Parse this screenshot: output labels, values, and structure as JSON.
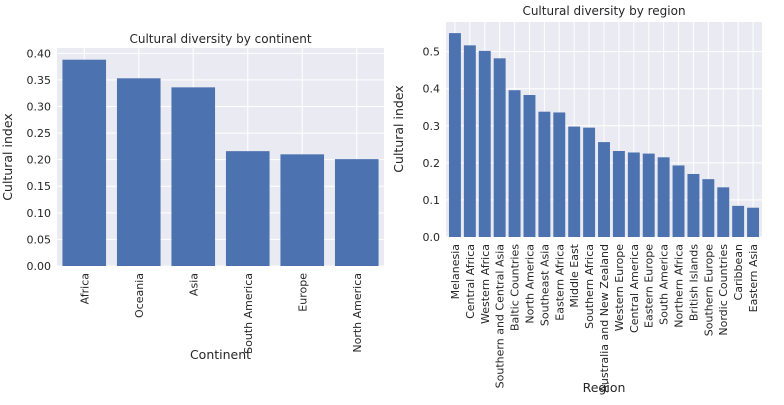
{
  "chart_data": [
    {
      "type": "bar",
      "title": "Cultural diversity by continent",
      "xlabel": "Continent",
      "ylabel": "Cultural index",
      "ylim": [
        0,
        0.41
      ],
      "yticks": [
        "0.00",
        "0.05",
        "0.10",
        "0.15",
        "0.20",
        "0.25",
        "0.30",
        "0.35",
        "0.40"
      ],
      "categories": [
        "Africa",
        "Oceania",
        "Asia",
        "South America",
        "Europe",
        "North America"
      ],
      "values": [
        0.388,
        0.353,
        0.336,
        0.216,
        0.21,
        0.201
      ],
      "grid": true,
      "bar_color": "#4c72b0",
      "plot_bg": "#eaeaf2"
    },
    {
      "type": "bar",
      "title": "Cultural diversity by region",
      "xlabel": "Region",
      "ylabel": "Cultural index",
      "ylim": [
        0,
        0.58
      ],
      "yticks": [
        "0.0",
        "0.1",
        "0.2",
        "0.3",
        "0.4",
        "0.5"
      ],
      "categories": [
        "Melanesia",
        "Central Africa",
        "Western Africa",
        "Southern and Central Asia",
        "Baltic Countries",
        "North America",
        "Southeast Asia",
        "Eastern Africa",
        "Middle East",
        "Southern Africa",
        "Australia and New Zealand",
        "Western Europe",
        "Central America",
        "Eastern Europe",
        "South America",
        "Northern Africa",
        "British Islands",
        "Southern Europe",
        "Nordic Countries",
        "Caribbean",
        "Eastern Asia"
      ],
      "values": [
        0.55,
        0.517,
        0.502,
        0.482,
        0.396,
        0.383,
        0.338,
        0.336,
        0.298,
        0.295,
        0.256,
        0.232,
        0.228,
        0.225,
        0.215,
        0.193,
        0.17,
        0.156,
        0.134,
        0.084,
        0.079
      ],
      "grid": true,
      "bar_color": "#4c72b0",
      "plot_bg": "#eaeaf2"
    }
  ]
}
